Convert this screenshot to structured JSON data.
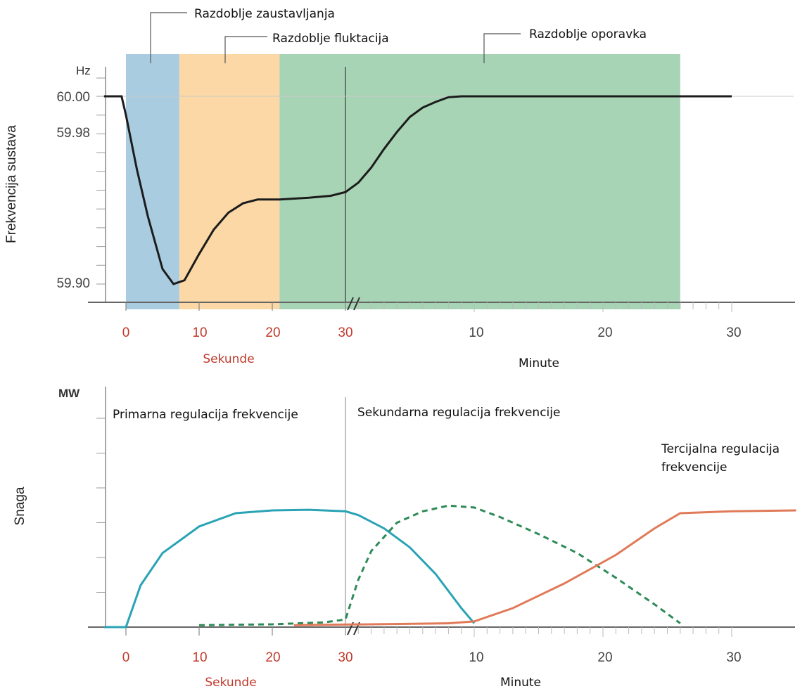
{
  "chart_data": [
    {
      "type": "line",
      "ylabel": "Frekvencija sustava",
      "yunit": "Hz",
      "ytick_labels": [
        "60.00",
        "59.98",
        "59.90"
      ],
      "ylim": [
        59.885,
        60.005
      ],
      "x_segments": [
        {
          "unit_label": "Sekunde",
          "ticks": [
            "0",
            "10",
            "20",
            "30"
          ],
          "range": [
            -3,
            30
          ]
        },
        {
          "unit_label": "Minute",
          "ticks": [
            "10",
            "20",
            "30"
          ],
          "range": [
            0,
            30
          ]
        }
      ],
      "periods": [
        {
          "name": "Razdoblje zaustavljanja",
          "segment": "seconds",
          "from": 0,
          "to": 7.3,
          "color": "#a9cce0"
        },
        {
          "name": "Razdoblje fluktacija",
          "segment": "seconds",
          "from": 7.3,
          "to": 21,
          "color": "#fbd8a6"
        },
        {
          "name": "Razdoblje oporavka",
          "segment": "mixed",
          "from_seconds": 21,
          "to_minutes": 26,
          "color": "#a7d4b5"
        }
      ],
      "series": [
        {
          "color": "#1c1c1c",
          "points_seconds": [
            [
              -3,
              60.0
            ],
            [
              -0.6,
              60.0
            ],
            [
              0,
              59.99
            ],
            [
              1.5,
              59.961
            ],
            [
              3,
              59.936
            ],
            [
              5,
              59.908
            ],
            [
              6.5,
              59.9
            ],
            [
              8,
              59.902
            ],
            [
              10,
              59.916
            ],
            [
              12,
              59.929
            ],
            [
              14,
              59.938
            ],
            [
              16,
              59.943
            ],
            [
              18,
              59.945
            ],
            [
              21,
              59.945
            ],
            [
              25,
              59.946
            ],
            [
              28,
              59.947
            ],
            [
              30,
              59.949
            ]
          ],
          "points_minutes": [
            [
              0,
              59.949
            ],
            [
              1,
              59.954
            ],
            [
              2,
              59.962
            ],
            [
              3,
              59.972
            ],
            [
              4,
              59.981
            ],
            [
              5,
              59.989
            ],
            [
              6,
              59.994
            ],
            [
              7,
              59.997
            ],
            [
              8,
              59.9995
            ],
            [
              9,
              60.0
            ],
            [
              30,
              60.0
            ]
          ]
        }
      ]
    },
    {
      "type": "line",
      "ylabel": "Snaga",
      "yunit": "MW",
      "ylim": [
        0,
        100
      ],
      "x_segments": [
        {
          "unit_label": "Sekunde",
          "ticks": [
            "0",
            "10",
            "20",
            "30"
          ],
          "range": [
            -3,
            30
          ]
        },
        {
          "unit_label": "Minute",
          "ticks": [
            "10",
            "20",
            "30"
          ],
          "range": [
            0,
            35
          ]
        }
      ],
      "annotations": [
        "Primarna regulacija frekvencije",
        "Sekundarna regulacija frekvencije",
        "Tercijalna regulacija",
        "frekvencije"
      ],
      "series": [
        {
          "color": "#2aa3b5",
          "dash": false,
          "points_seconds": [
            [
              -3,
              0
            ],
            [
              0,
              0
            ],
            [
              2,
              22
            ],
            [
              5,
              39
            ],
            [
              10,
              53
            ],
            [
              15,
              60
            ],
            [
              20,
              61.5
            ],
            [
              25,
              61.8
            ],
            [
              30,
              61
            ]
          ],
          "points_minutes": [
            [
              0,
              61
            ],
            [
              1,
              59
            ],
            [
              3,
              52
            ],
            [
              5,
              42
            ],
            [
              7,
              28
            ],
            [
              9,
              10
            ],
            [
              10,
              2
            ]
          ]
        },
        {
          "color": "#2e8b57",
          "dash": true,
          "points_seconds": [
            [
              10,
              1
            ],
            [
              20,
              1.5
            ],
            [
              27,
              2.5
            ],
            [
              30,
              4
            ]
          ],
          "points_minutes": [
            [
              0,
              4
            ],
            [
              1,
              25
            ],
            [
              2,
              40
            ],
            [
              4,
              55
            ],
            [
              6,
              61
            ],
            [
              8,
              64
            ],
            [
              10,
              63
            ],
            [
              12,
              58
            ],
            [
              15,
              49
            ],
            [
              18,
              39
            ],
            [
              21,
              26
            ],
            [
              24,
              12
            ],
            [
              26,
              2
            ]
          ]
        },
        {
          "color": "#e07a58",
          "dash": false,
          "points_minutes": [
            [
              -4,
              1
            ],
            [
              8,
              2
            ],
            [
              10,
              3
            ],
            [
              13,
              10
            ],
            [
              17,
              23
            ],
            [
              21,
              38
            ],
            [
              24,
              52
            ],
            [
              26,
              60
            ],
            [
              30,
              61
            ],
            [
              35,
              61.5
            ]
          ]
        }
      ]
    }
  ]
}
